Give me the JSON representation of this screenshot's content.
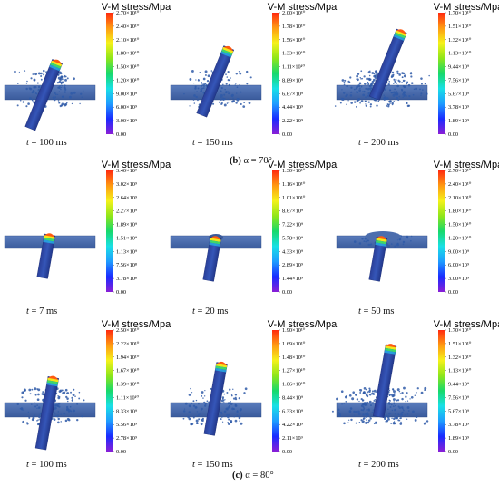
{
  "colorbar_title": "V-M stress/Mpa",
  "colorscale": [
    "#8a1fd6",
    "#1a2bff",
    "#1f9cff",
    "#19e0e6",
    "#18d96b",
    "#8fe61a",
    "#f5f21a",
    "#ff9a12",
    "#ff2a10"
  ],
  "colors": {
    "plate": "#3f63a6",
    "rod": "#2946a3",
    "debris": "#2f5aa8",
    "background": "#ffffff"
  },
  "sections": [
    {
      "label": "(b) α = 70°",
      "label_bold": "(b)",
      "label_rest": " α = 70°"
    },
    {
      "label": "(c) α = 80°",
      "label_bold": "(c)",
      "label_rest": " α = 80°"
    }
  ],
  "panels": [
    {
      "caption_var": "t",
      "caption_val": " = 100 ms",
      "ticks": [
        "2.70×10¹⁰",
        "2.40×10¹⁰",
        "2.10×10¹⁰",
        "1.80×10¹⁰",
        "1.50×10¹⁰",
        "1.20×10¹⁰",
        "9.00×10⁹",
        "6.00×10⁹",
        "3.00×10⁹",
        "0.00"
      ],
      "rod_angle": 22,
      "debris": "medium",
      "stage": "pierced"
    },
    {
      "caption_var": "t",
      "caption_val": " = 150 ms",
      "ticks": [
        "2.00×10¹⁰",
        "1.78×10¹⁰",
        "1.56×10¹⁰",
        "1.33×10¹⁰",
        "1.11×10¹⁰",
        "8.89×10⁹",
        "6.67×10⁹",
        "4.44×10⁹",
        "2.22×10⁹",
        "0.00"
      ],
      "rod_angle": 22,
      "debris": "medium",
      "stage": "pierced"
    },
    {
      "caption_var": "t",
      "caption_val": " = 200 ms",
      "ticks": [
        "1.70×10¹⁰",
        "1.51×10¹⁰",
        "1.32×10¹⁰",
        "1.13×10¹⁰",
        "9.44×10⁹",
        "7.56×10⁹",
        "5.67×10⁹",
        "3.78×10⁹",
        "1.89×10⁹",
        "0.00"
      ],
      "rod_angle": 22,
      "debris": "heavy",
      "stage": "pierced"
    },
    {
      "caption_var": "t",
      "caption_val": " = 7 ms",
      "ticks": [
        "3.40×10⁹",
        "3.02×10⁹",
        "2.64×10⁹",
        "2.27×10⁹",
        "1.89×10⁹",
        "1.51×10⁹",
        "1.13×10⁹",
        "7.56×10⁸",
        "3.78×10⁸",
        "0.00"
      ],
      "rod_angle": 10,
      "debris": "none",
      "stage": "contact"
    },
    {
      "caption_var": "t",
      "caption_val": " = 20 ms",
      "ticks": [
        "1.30×10¹⁰",
        "1.16×10¹⁰",
        "1.01×10¹⁰",
        "8.67×10⁹",
        "7.22×10⁹",
        "5.78×10⁹",
        "4.33×10⁹",
        "2.89×10⁹",
        "1.44×10⁹",
        "0.00"
      ],
      "rod_angle": 10,
      "debris": "none",
      "stage": "dent"
    },
    {
      "caption_var": "t",
      "caption_val": " = 50 ms",
      "ticks": [
        "2.70×10¹⁰",
        "2.40×10¹⁰",
        "2.10×10¹⁰",
        "1.80×10¹⁰",
        "1.50×10¹⁰",
        "1.20×10¹⁰",
        "9.00×10⁹",
        "6.00×10⁹",
        "3.00×10⁹",
        "0.00"
      ],
      "rod_angle": 10,
      "debris": "light",
      "stage": "bulge"
    },
    {
      "caption_var": "t",
      "caption_val": " = 100 ms",
      "ticks": [
        "2.50×10¹⁰",
        "2.22×10¹⁰",
        "1.94×10¹⁰",
        "1.67×10¹⁰",
        "1.39×10¹⁰",
        "1.11×10¹⁰",
        "8.33×10⁹",
        "5.56×10⁹",
        "2.78×10⁹",
        "0.00"
      ],
      "rod_angle": 10,
      "debris": "medium",
      "stage": "pierced"
    },
    {
      "caption_var": "t",
      "caption_val": " = 150 ms",
      "ticks": [
        "1.90×10¹⁰",
        "1.69×10¹⁰",
        "1.48×10¹⁰",
        "1.27×10¹⁰",
        "1.06×10¹⁰",
        "8.44×10⁹",
        "6.33×10⁹",
        "4.22×10⁹",
        "2.11×10⁹",
        "0.00"
      ],
      "rod_angle": 10,
      "debris": "medium",
      "stage": "pierced"
    },
    {
      "caption_var": "t",
      "caption_val": " = 200 ms",
      "ticks": [
        "1.70×10¹⁰",
        "1.51×10¹⁰",
        "1.32×10¹⁰",
        "1.13×10¹⁰",
        "9.44×10⁹",
        "7.56×10⁹",
        "5.67×10⁹",
        "3.78×10⁹",
        "1.89×10⁹",
        "0.00"
      ],
      "rod_angle": 10,
      "debris": "heavy",
      "stage": "pierced"
    }
  ]
}
